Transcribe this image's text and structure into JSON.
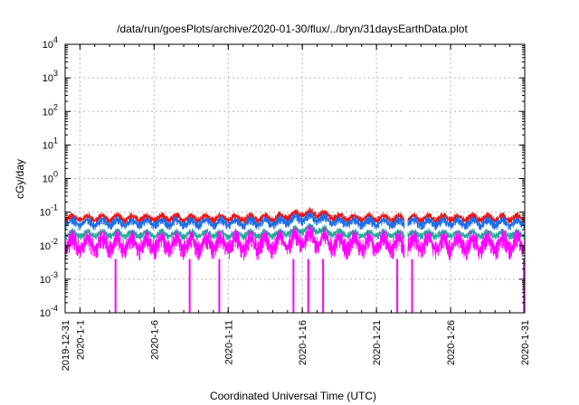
{
  "chart_data": {
    "type": "line",
    "title": "/data/run/goesPlots/archive/2020-01-30/flux/../bryn/31daysEarthData.plot",
    "xlabel": "Coordinated Universal Time (UTC)",
    "ylabel": "cGy/day",
    "yscale": "log",
    "ylim": [
      0.0001,
      10000
    ],
    "xlim": [
      "2019-12-31",
      "2020-01-31"
    ],
    "grid": true,
    "legend": "none",
    "y_ticks": [
      {
        "value": 0.0001,
        "base": "10",
        "exp": "-4"
      },
      {
        "value": 0.001,
        "base": "10",
        "exp": "-3"
      },
      {
        "value": 0.01,
        "base": "10",
        "exp": "-2"
      },
      {
        "value": 0.1,
        "base": "10",
        "exp": "-1"
      },
      {
        "value": 1,
        "base": "10",
        "exp": "0"
      },
      {
        "value": 10,
        "base": "10",
        "exp": "1"
      },
      {
        "value": 100,
        "base": "10",
        "exp": "2"
      },
      {
        "value": 1000,
        "base": "10",
        "exp": "3"
      },
      {
        "value": 10000,
        "base": "10",
        "exp": "4"
      }
    ],
    "x_ticks": [
      {
        "value": "2019-12-31",
        "label": "2019-12-31"
      },
      {
        "value": "2020-01-01",
        "label": "2020-1-1"
      },
      {
        "value": "2020-01-06",
        "label": "2020-1-6"
      },
      {
        "value": "2020-01-11",
        "label": "2020-1-11"
      },
      {
        "value": "2020-01-16",
        "label": "2020-1-16"
      },
      {
        "value": "2020-01-21",
        "label": "2020-1-21"
      },
      {
        "value": "2020-01-26",
        "label": "2020-1-26"
      },
      {
        "value": "2020-01-31",
        "label": "2020-1-31"
      }
    ],
    "series": [
      {
        "color": "#ee1111",
        "typical_range": [
          0.045,
          0.09
        ]
      },
      {
        "color": "#1a6ee8",
        "typical_range": [
          0.03,
          0.07
        ]
      },
      {
        "color": "#22a89a",
        "typical_range": [
          0.015,
          0.03
        ]
      },
      {
        "color": "#ff00ff",
        "typical_range": [
          0.004,
          0.025
        ],
        "drop_dates": [
          "2020-01-03",
          "2020-01-08",
          "2020-01-10",
          "2020-01-15",
          "2020-01-16",
          "2020-01-17",
          "2020-01-22",
          "2020-01-23",
          "2020-01-31"
        ]
      }
    ]
  }
}
